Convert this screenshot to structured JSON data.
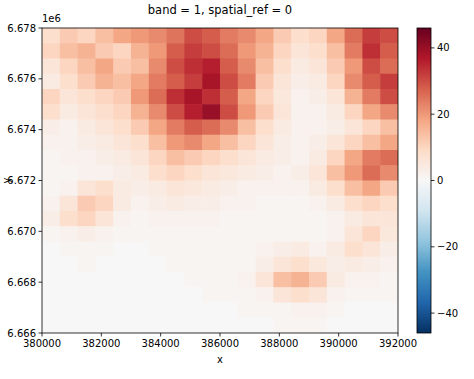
{
  "chart_data": {
    "type": "heatmap",
    "title": "band = 1, spatial_ref = 0",
    "x_label": "x",
    "y_label": "y",
    "annotations": [
      "1e6"
    ],
    "xlim": [
      380000,
      392000
    ],
    "ylim": [
      6666000,
      6678000
    ],
    "xticks": [
      380000,
      382000,
      384000,
      386000,
      388000,
      390000,
      392000
    ],
    "yticks": [
      {
        "value": 6666000,
        "label": "6.666"
      },
      {
        "value": 6668000,
        "label": "6.668"
      },
      {
        "value": 6670000,
        "label": "6.670"
      },
      {
        "value": 6672000,
        "label": "6.672"
      },
      {
        "value": 6674000,
        "label": "6.674"
      },
      {
        "value": 6676000,
        "label": "6.676"
      },
      {
        "value": 6678000,
        "label": "6.678"
      }
    ],
    "x": [
      380300,
      380900,
      381500,
      382100,
      382700,
      383300,
      383900,
      384500,
      385100,
      385700,
      386300,
      386900,
      387500,
      388100,
      388700,
      389300,
      389900,
      390500,
      391100,
      391700
    ],
    "y": [
      6677700,
      6677100,
      6676500,
      6675900,
      6675300,
      6674700,
      6674100,
      6673500,
      6672900,
      6672300,
      6671700,
      6671100,
      6670500,
      6669900,
      6669300,
      6668700,
      6668100,
      6667500,
      6666900,
      6666300
    ],
    "cells": [
      [
        8,
        12,
        10,
        14,
        18,
        20,
        22,
        25,
        30,
        28,
        24,
        22,
        18,
        12,
        8,
        10,
        18,
        26,
        32,
        30
      ],
      [
        10,
        14,
        16,
        12,
        10,
        16,
        20,
        28,
        32,
        30,
        26,
        20,
        16,
        10,
        6,
        8,
        14,
        24,
        34,
        28
      ],
      [
        6,
        10,
        14,
        18,
        12,
        14,
        22,
        30,
        34,
        36,
        28,
        22,
        14,
        8,
        4,
        6,
        12,
        20,
        30,
        26
      ],
      [
        4,
        8,
        12,
        16,
        14,
        18,
        24,
        28,
        32,
        38,
        30,
        24,
        12,
        6,
        3,
        4,
        10,
        22,
        28,
        32
      ],
      [
        10,
        6,
        8,
        10,
        12,
        20,
        26,
        34,
        38,
        34,
        28,
        18,
        10,
        5,
        2,
        3,
        6,
        16,
        24,
        30
      ],
      [
        8,
        4,
        6,
        8,
        10,
        16,
        22,
        30,
        36,
        40,
        30,
        20,
        12,
        6,
        2,
        2,
        4,
        10,
        18,
        22
      ],
      [
        3,
        2,
        4,
        6,
        8,
        12,
        18,
        24,
        28,
        26,
        22,
        14,
        8,
        4,
        2,
        2,
        3,
        6,
        10,
        14
      ],
      [
        2,
        2,
        3,
        4,
        6,
        8,
        14,
        20,
        22,
        18,
        14,
        10,
        6,
        3,
        2,
        3,
        6,
        10,
        14,
        18
      ],
      [
        1,
        2,
        2,
        3,
        4,
        6,
        10,
        14,
        12,
        10,
        8,
        6,
        4,
        3,
        2,
        4,
        10,
        18,
        24,
        26
      ],
      [
        1,
        1,
        2,
        2,
        3,
        4,
        8,
        10,
        8,
        6,
        5,
        4,
        3,
        2,
        3,
        6,
        14,
        20,
        26,
        22
      ],
      [
        1,
        2,
        6,
        8,
        4,
        3,
        4,
        6,
        5,
        4,
        3,
        2,
        2,
        2,
        2,
        4,
        8,
        14,
        18,
        12
      ],
      [
        2,
        6,
        12,
        10,
        4,
        2,
        3,
        4,
        3,
        3,
        2,
        2,
        1,
        1,
        1,
        2,
        4,
        8,
        10,
        8
      ],
      [
        3,
        8,
        10,
        6,
        2,
        1,
        2,
        2,
        2,
        2,
        1,
        1,
        1,
        1,
        1,
        1,
        2,
        4,
        6,
        6
      ],
      [
        1,
        2,
        3,
        2,
        1,
        1,
        1,
        1,
        1,
        1,
        1,
        1,
        1,
        1,
        1,
        1,
        2,
        6,
        10,
        5
      ],
      [
        0,
        1,
        1,
        1,
        0,
        0,
        1,
        1,
        1,
        1,
        1,
        1,
        2,
        3,
        4,
        2,
        4,
        8,
        6,
        3
      ],
      [
        0,
        0,
        1,
        0,
        0,
        0,
        0,
        1,
        1,
        1,
        1,
        1,
        3,
        6,
        8,
        5,
        3,
        4,
        3,
        2
      ],
      [
        0,
        0,
        0,
        0,
        0,
        0,
        0,
        0,
        1,
        1,
        1,
        2,
        6,
        14,
        16,
        12,
        4,
        2,
        2,
        1
      ],
      [
        0,
        0,
        0,
        0,
        0,
        0,
        0,
        0,
        0,
        1,
        1,
        1,
        2,
        6,
        8,
        6,
        2,
        1,
        1,
        1
      ],
      [
        0,
        0,
        0,
        0,
        0,
        0,
        0,
        0,
        0,
        0,
        0,
        1,
        1,
        1,
        2,
        2,
        1,
        0,
        0,
        0
      ],
      [
        0,
        0,
        0,
        0,
        0,
        0,
        0,
        0,
        0,
        0,
        0,
        0,
        0,
        1,
        1,
        1,
        0,
        0,
        0,
        0
      ]
    ],
    "colorbar": {
      "lim": [
        -46,
        46
      ],
      "ticks": [
        {
          "value": -40,
          "label": "−40"
        },
        {
          "value": -20,
          "label": "−20"
        },
        0,
        20,
        40
      ]
    }
  }
}
